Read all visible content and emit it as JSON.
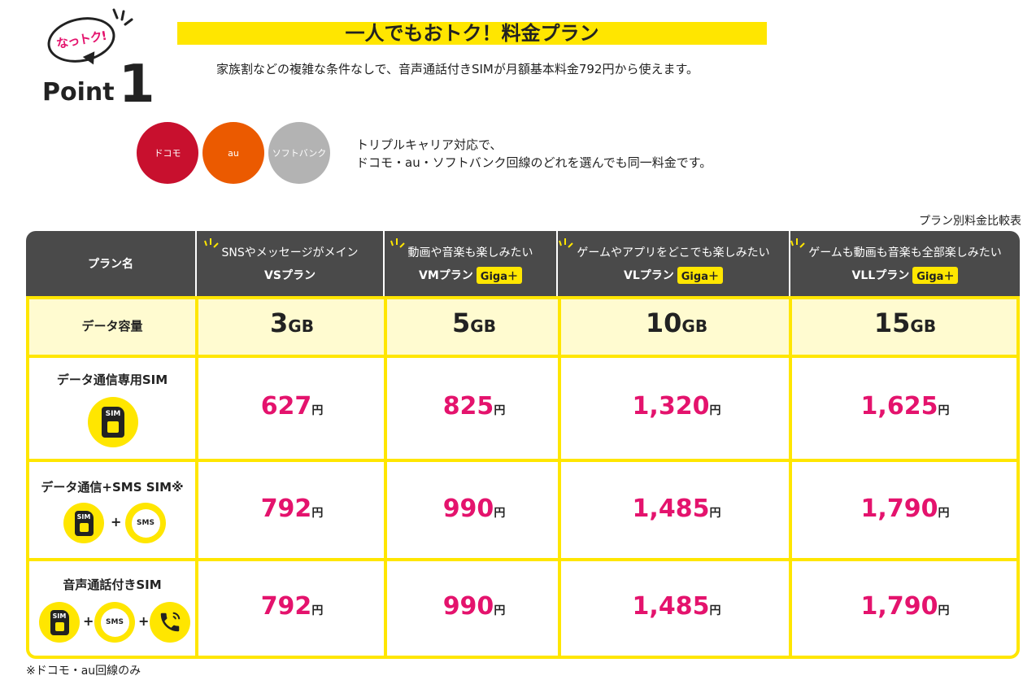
{
  "badge": {
    "bubble_text": "なっトク!",
    "word": "Point",
    "number": "1"
  },
  "title": "一人でもおトク！料金プラン",
  "lead": "家族割などの複雑な条件なしで、音声通話付きSIMが月額基本料金792円から使えます。",
  "carriers": [
    {
      "label": "ドコモ",
      "color": "#c8102e"
    },
    {
      "label": "au",
      "color": "#eb5a00"
    },
    {
      "label": "ソフトバンク",
      "color": "#b3b3b3"
    }
  ],
  "carrier_text": [
    "トリプルキャリア対応で、",
    "ドコモ・au・ソフトバンク回線のどれを選んでも同一料金です。"
  ],
  "table_caption": "プラン別料金比較表",
  "table": {
    "header_label": "プラン名",
    "plans": [
      {
        "sub": "SNSやメッセージがメイン",
        "name": "VSプラン",
        "giga": ""
      },
      {
        "sub": "動画や音楽も楽しみたい",
        "name": "VMプラン",
        "giga": "Giga＋"
      },
      {
        "sub": "ゲームやアプリをどこでも楽しみたい",
        "name": "VLプラン",
        "giga": "Giga＋"
      },
      {
        "sub": "ゲームも動画も音楽も全部楽しみたい",
        "name": "VLLプラン",
        "giga": "Giga＋"
      }
    ],
    "data_row": {
      "label": "データ容量",
      "values": [
        "3",
        "5",
        "10",
        "15"
      ],
      "unit": "GB"
    },
    "rows": [
      {
        "label": "データ通信専用SIM",
        "prices": [
          "627",
          "825",
          "1,320",
          "1,625"
        ]
      },
      {
        "label": "データ通信+SMS SIM※",
        "prices": [
          "792",
          "990",
          "1,485",
          "1,790"
        ]
      },
      {
        "label": "音声通話付きSIM",
        "prices": [
          "792",
          "990",
          "1,485",
          "1,790"
        ]
      }
    ],
    "yen": "円",
    "icon_sim": "SIM",
    "icon_sms": "SMS",
    "plus": "+"
  },
  "footnote": "※ドコモ・au回線のみ",
  "colors": {
    "accent": "#ffe600",
    "price": "#e4136d",
    "header_bg": "#4a4a4a"
  }
}
